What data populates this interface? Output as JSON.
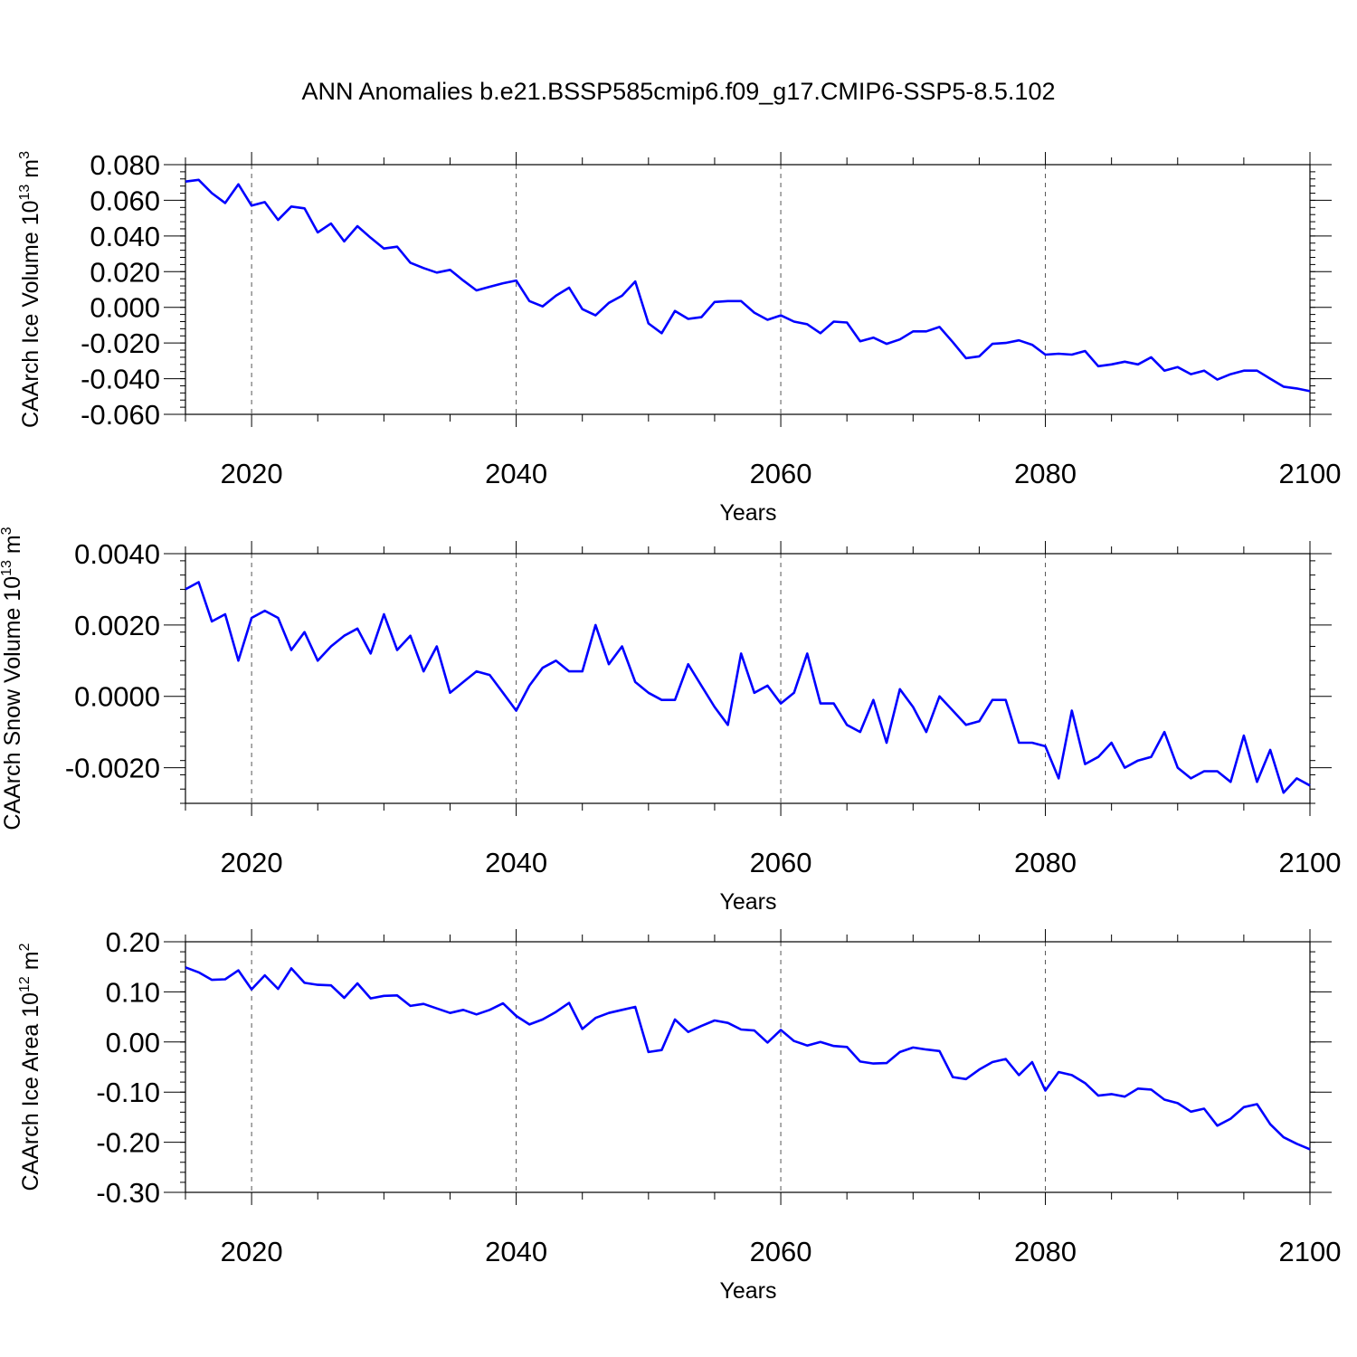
{
  "figure": {
    "title": "ANN Anomalies b.e21.BSSP585cmip6.f09_g17.CMIP6-SSP5-8.5.102"
  },
  "style": {
    "line_color": "#0000ff",
    "axis_color": "#000000",
    "grid_color": "#555555"
  },
  "chart_data": [
    {
      "type": "line",
      "ylabel": {
        "main": "CAArch Ice Volume 10",
        "exp": "13",
        "unit": " m",
        "unit_exp": "3"
      },
      "xlabel": "Years",
      "xlim": [
        2015,
        2100
      ],
      "ylim": [
        -0.06,
        0.08
      ],
      "xticks": [
        2020,
        2040,
        2060,
        2080,
        2100
      ],
      "xtick_labels": [
        "2020",
        "2040",
        "2060",
        "2080",
        "2100"
      ],
      "yticks": [
        0.08,
        0.06,
        0.04,
        0.02,
        0.0,
        -0.02,
        -0.04,
        -0.06
      ],
      "ytick_labels": [
        "0.080",
        "0.060",
        "0.040",
        "0.020",
        "0.000",
        "-0.020",
        "-0.040",
        "-0.060"
      ],
      "grid": "vertical dashed at major x ticks",
      "x_start": 2015,
      "values": [
        0.0705,
        0.0715,
        0.064,
        0.0585,
        0.069,
        0.057,
        0.059,
        0.049,
        0.0565,
        0.0555,
        0.042,
        0.047,
        0.037,
        0.0455,
        0.039,
        0.033,
        0.034,
        0.025,
        0.022,
        0.0195,
        0.021,
        0.015,
        0.0095,
        0.0115,
        0.0135,
        0.015,
        0.0035,
        0.0005,
        0.0065,
        0.011,
        -0.001,
        -0.0045,
        0.0025,
        0.0065,
        0.0145,
        -0.009,
        -0.0145,
        -0.002,
        -0.0065,
        -0.0055,
        0.003,
        0.0035,
        0.0035,
        -0.003,
        -0.007,
        -0.0045,
        -0.008,
        -0.0095,
        -0.0145,
        -0.008,
        -0.0085,
        -0.019,
        -0.017,
        -0.0205,
        -0.018,
        -0.0135,
        -0.0135,
        -0.011,
        -0.0195,
        -0.0285,
        -0.0275,
        -0.0205,
        -0.02,
        -0.0185,
        -0.021,
        -0.0265,
        -0.026,
        -0.0265,
        -0.0245,
        -0.033,
        -0.032,
        -0.0305,
        -0.032,
        -0.028,
        -0.0355,
        -0.0335,
        -0.0375,
        -0.0355,
        -0.0405,
        -0.0375,
        -0.0355,
        -0.0355,
        -0.04,
        -0.0445,
        -0.0455,
        -0.047
      ]
    },
    {
      "type": "line",
      "ylabel": {
        "main": "CAArch Snow Volume 10",
        "exp": "13",
        "unit": " m",
        "unit_exp": "3"
      },
      "xlabel": "Years",
      "xlim": [
        2015,
        2100
      ],
      "ylim": [
        -0.003,
        0.004
      ],
      "xticks": [
        2020,
        2040,
        2060,
        2080,
        2100
      ],
      "xtick_labels": [
        "2020",
        "2040",
        "2060",
        "2080",
        "2100"
      ],
      "yticks": [
        0.004,
        0.002,
        0.0,
        -0.002
      ],
      "ytick_labels": [
        "0.0040",
        "0.0020",
        "0.0000",
        "-0.0020"
      ],
      "grid": "vertical dashed at major x ticks",
      "x_start": 2015,
      "values": [
        0.003,
        0.0032,
        0.0021,
        0.0023,
        0.001,
        0.0022,
        0.0024,
        0.0022,
        0.0013,
        0.0018,
        0.001,
        0.0014,
        0.0017,
        0.0019,
        0.0012,
        0.0023,
        0.0013,
        0.0017,
        0.0007,
        0.0014,
        0.0001,
        0.0004,
        0.0007,
        0.0006,
        0.0001,
        -0.0004,
        0.0003,
        0.0008,
        0.001,
        0.0007,
        0.0007,
        0.002,
        0.0009,
        0.0014,
        0.0004,
        0.0001,
        -0.0001,
        -0.0001,
        0.0009,
        0.0003,
        -0.0003,
        -0.0008,
        0.0012,
        0.0001,
        0.0003,
        -0.0002,
        0.0001,
        0.0012,
        -0.0002,
        -0.0002,
        -0.0008,
        -0.001,
        -0.0001,
        -0.0013,
        0.0002,
        -0.0003,
        -0.001,
        0.0,
        -0.0004,
        -0.0008,
        -0.0007,
        -0.0001,
        -0.0001,
        -0.0013,
        -0.0013,
        -0.0014,
        -0.0023,
        -0.0004,
        -0.0019,
        -0.0017,
        -0.0013,
        -0.002,
        -0.0018,
        -0.0017,
        -0.001,
        -0.002,
        -0.0023,
        -0.0021,
        -0.0021,
        -0.0024,
        -0.0011,
        -0.0024,
        -0.0015,
        -0.0027,
        -0.0023,
        -0.0025
      ]
    },
    {
      "type": "line",
      "ylabel": {
        "main": "CAArch Ice Area 10",
        "exp": "12",
        "unit": " m",
        "unit_exp": "2"
      },
      "xlabel": "Years",
      "xlim": [
        2015,
        2100
      ],
      "ylim": [
        -0.3,
        0.2
      ],
      "xticks": [
        2020,
        2040,
        2060,
        2080,
        2100
      ],
      "xtick_labels": [
        "2020",
        "2040",
        "2060",
        "2080",
        "2100"
      ],
      "yticks": [
        0.2,
        0.1,
        0.0,
        -0.1,
        -0.2,
        -0.3
      ],
      "ytick_labels": [
        "0.20",
        "0.10",
        "0.00",
        "-0.10",
        "-0.20",
        "-0.30"
      ],
      "grid": "vertical dashed at major x ticks",
      "x_start": 2015,
      "values": [
        0.149,
        0.139,
        0.124,
        0.125,
        0.143,
        0.105,
        0.133,
        0.106,
        0.147,
        0.118,
        0.114,
        0.113,
        0.088,
        0.117,
        0.087,
        0.092,
        0.093,
        0.072,
        0.076,
        0.067,
        0.058,
        0.064,
        0.055,
        0.064,
        0.077,
        0.052,
        0.035,
        0.045,
        0.06,
        0.078,
        0.026,
        0.048,
        0.058,
        0.064,
        0.07,
        -0.02,
        -0.016,
        0.045,
        0.02,
        0.032,
        0.043,
        0.038,
        0.025,
        0.023,
        -0.001,
        0.024,
        0.002,
        -0.007,
        0.0,
        -0.008,
        -0.01,
        -0.039,
        -0.043,
        -0.042,
        -0.02,
        -0.011,
        -0.015,
        -0.018,
        -0.07,
        -0.074,
        -0.055,
        -0.04,
        -0.034,
        -0.066,
        -0.04,
        -0.097,
        -0.06,
        -0.066,
        -0.082,
        -0.107,
        -0.104,
        -0.109,
        -0.093,
        -0.095,
        -0.115,
        -0.122,
        -0.139,
        -0.133,
        -0.167,
        -0.153,
        -0.13,
        -0.124,
        -0.164,
        -0.19,
        -0.203,
        -0.214
      ]
    }
  ]
}
